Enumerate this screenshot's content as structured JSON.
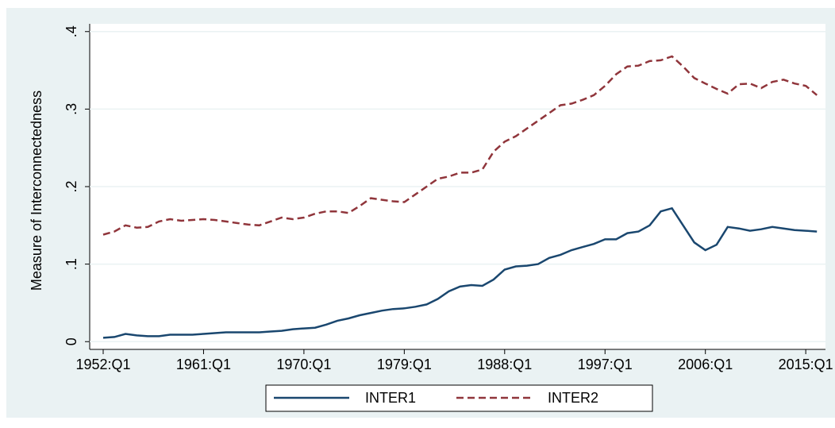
{
  "chart_data": {
    "type": "line",
    "y_label": "Measure of Interconnectedness",
    "x": [
      "1952:Q1",
      "1953:Q1",
      "1954:Q1",
      "1955:Q1",
      "1956:Q1",
      "1957:Q1",
      "1958:Q1",
      "1959:Q1",
      "1960:Q1",
      "1961:Q1",
      "1962:Q1",
      "1963:Q1",
      "1964:Q1",
      "1965:Q1",
      "1966:Q1",
      "1967:Q1",
      "1968:Q1",
      "1969:Q1",
      "1970:Q1",
      "1971:Q1",
      "1972:Q1",
      "1973:Q1",
      "1974:Q1",
      "1975:Q1",
      "1976:Q1",
      "1977:Q1",
      "1978:Q1",
      "1979:Q1",
      "1980:Q1",
      "1981:Q1",
      "1982:Q1",
      "1983:Q1",
      "1984:Q1",
      "1985:Q1",
      "1986:Q1",
      "1987:Q1",
      "1988:Q1",
      "1989:Q1",
      "1990:Q1",
      "1991:Q1",
      "1992:Q1",
      "1993:Q1",
      "1994:Q1",
      "1995:Q1",
      "1996:Q1",
      "1997:Q1",
      "1998:Q1",
      "1999:Q1",
      "2000:Q1",
      "2001:Q1",
      "2002:Q1",
      "2003:Q1",
      "2004:Q1",
      "2005:Q1",
      "2006:Q1",
      "2007:Q1",
      "2008:Q1",
      "2009:Q1",
      "2010:Q1",
      "2011:Q1",
      "2012:Q1",
      "2013:Q1",
      "2014:Q1",
      "2015:Q1",
      "2016:Q1"
    ],
    "series": [
      {
        "name": "INTER1",
        "color": "#1a476f",
        "dash": false,
        "values": [
          0.005,
          0.006,
          0.01,
          0.008,
          0.007,
          0.007,
          0.009,
          0.009,
          0.009,
          0.01,
          0.011,
          0.012,
          0.012,
          0.012,
          0.012,
          0.013,
          0.014,
          0.016,
          0.017,
          0.018,
          0.022,
          0.027,
          0.03,
          0.034,
          0.037,
          0.04,
          0.042,
          0.043,
          0.045,
          0.048,
          0.055,
          0.065,
          0.071,
          0.073,
          0.072,
          0.08,
          0.093,
          0.097,
          0.098,
          0.1,
          0.108,
          0.112,
          0.118,
          0.122,
          0.126,
          0.132,
          0.132,
          0.14,
          0.142,
          0.15,
          0.168,
          0.172,
          0.15,
          0.128,
          0.118,
          0.125,
          0.148,
          0.146,
          0.143,
          0.145,
          0.148,
          0.146,
          0.144,
          0.143,
          0.142
        ]
      },
      {
        "name": "INTER2",
        "color": "#90353b",
        "dash": true,
        "values": [
          0.138,
          0.142,
          0.15,
          0.147,
          0.148,
          0.155,
          0.158,
          0.156,
          0.157,
          0.158,
          0.157,
          0.155,
          0.153,
          0.151,
          0.15,
          0.155,
          0.16,
          0.158,
          0.16,
          0.165,
          0.168,
          0.168,
          0.166,
          0.175,
          0.185,
          0.183,
          0.181,
          0.18,
          0.19,
          0.2,
          0.21,
          0.213,
          0.218,
          0.218,
          0.222,
          0.245,
          0.258,
          0.265,
          0.275,
          0.285,
          0.295,
          0.305,
          0.307,
          0.312,
          0.318,
          0.33,
          0.345,
          0.355,
          0.356,
          0.362,
          0.363,
          0.368,
          0.355,
          0.34,
          0.333,
          0.326,
          0.32,
          0.332,
          0.333,
          0.327,
          0.335,
          0.338,
          0.333,
          0.33,
          0.318
        ]
      }
    ],
    "xticks": [
      "1952:Q1",
      "1961:Q1",
      "1970:Q1",
      "1979:Q1",
      "1988:Q1",
      "1997:Q1",
      "2006:Q1",
      "2015:Q1"
    ],
    "ylim": [
      -0.01,
      0.41
    ],
    "yticks": [
      {
        "value": 0,
        "label": "0"
      },
      {
        "value": 0.1,
        "label": ".1"
      },
      {
        "value": 0.2,
        "label": ".2"
      },
      {
        "value": 0.3,
        "label": ".3"
      },
      {
        "value": 0.4,
        "label": ".4"
      }
    ],
    "grid": true,
    "legend": "bottom"
  }
}
